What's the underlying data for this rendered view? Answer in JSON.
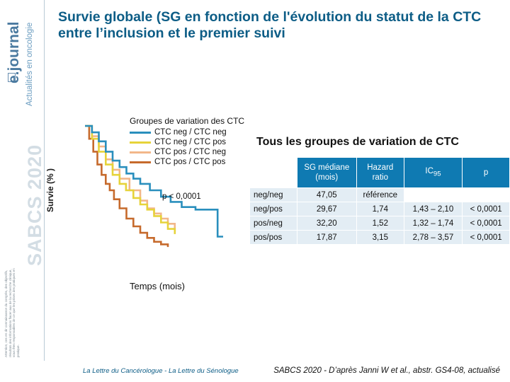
{
  "sidebar": {
    "brand": "e.journal",
    "subtitle": "Actualités en oncologie",
    "conference": "SABCS 2020",
    "disclaimer": "Attention, ces en dir connaissance du congrès, des objectifs, résultats des informations flacer aux de la recherche clinique, vous êtes responsables de ce que les prises des pratiques en pratique."
  },
  "title": "Survie globale (SG en fonction de l'évolution du statut de la CTC entre l’inclusion et le premier suivi",
  "chart_title": "Groupes de variation des CTC",
  "ylabel": "Survie (% )",
  "xlabel": "Temps (mois)",
  "pvalue": "p < 0,0001",
  "legend": [
    {
      "label": "CTC neg / CTC neg",
      "color": "#2a8fbd"
    },
    {
      "label": "CTC neg / CTC pos",
      "color": "#e6d33a"
    },
    {
      "label": "CTC pos / CTC neg",
      "color": "#f2b78a"
    },
    {
      "label": "CTC pos / CTC pos",
      "color": "#c66a2c"
    }
  ],
  "table": {
    "heading": "Tous les groupes de variation de CTC",
    "headers": {
      "median": "SG médiane (mois)",
      "hr": "Hazard ratio",
      "ic": "IC",
      "ic_sub": "95",
      "p": "p"
    },
    "rows": [
      {
        "group": "neg/neg",
        "median": "47,05",
        "hr": "référence",
        "ic": "",
        "p": ""
      },
      {
        "group": "neg/pos",
        "median": "29,67",
        "hr": "1,74",
        "ic": "1,43 – 2,10",
        "p": "< 0,0001"
      },
      {
        "group": "pos/neg",
        "median": "32,20",
        "hr": "1,52",
        "ic": "1,32 – 1,74",
        "p": "< 0,0001"
      },
      {
        "group": "pos/pos",
        "median": "17,87",
        "hr": "3,15",
        "ic": "2,78 – 3,57",
        "p": "< 0,0001"
      }
    ]
  },
  "footer": {
    "left": "La Lettre du Cancérologue - La Lettre du Sénologue",
    "right": "SABCS 2020 - D’après Janni W et al., abstr. GS4-08, actualisé"
  },
  "chart_data": {
    "type": "line",
    "title": "Groupes de variation des CTC",
    "xlabel": "Temps (mois)",
    "ylabel": "Survie (% )",
    "xlim": [
      0,
      100
    ],
    "ylim": [
      0,
      100
    ],
    "grid": false,
    "legend_position": "top-right",
    "series": [
      {
        "name": "CTC neg / CTC neg",
        "color": "#2a8fbd",
        "x": [
          0,
          5,
          10,
          15,
          20,
          25,
          30,
          35,
          40,
          47,
          55,
          62,
          70,
          80,
          90,
          96,
          96,
          100
        ],
        "y": [
          100,
          95,
          88,
          80,
          73,
          68,
          63,
          59,
          55,
          50,
          45,
          41,
          37,
          35,
          35,
          35,
          14,
          14
        ]
      },
      {
        "name": "CTC neg / CTC pos",
        "color": "#e6d33a",
        "x": [
          0,
          5,
          10,
          15,
          20,
          25,
          29.7,
          35,
          40,
          45,
          50,
          55,
          60,
          65
        ],
        "y": [
          100,
          90,
          80,
          70,
          62,
          55,
          50,
          44,
          39,
          35,
          30,
          25,
          20,
          16
        ]
      },
      {
        "name": "CTC pos / CTC neg",
        "color": "#f2b78a",
        "x": [
          0,
          5,
          10,
          15,
          20,
          25,
          32.2,
          40,
          45,
          50,
          55,
          60,
          65
        ],
        "y": [
          100,
          92,
          84,
          74,
          66,
          59,
          50,
          42,
          36,
          32,
          28,
          24,
          18
        ]
      },
      {
        "name": "CTC pos / CTC pos",
        "color": "#c66a2c",
        "x": [
          0,
          3,
          6,
          9,
          12,
          15,
          17.9,
          21,
          25,
          30,
          35,
          40,
          45,
          50,
          55,
          60
        ],
        "y": [
          100,
          90,
          80,
          70,
          62,
          55,
          50,
          43,
          36,
          28,
          22,
          17,
          13,
          10,
          8,
          6
        ]
      }
    ]
  }
}
